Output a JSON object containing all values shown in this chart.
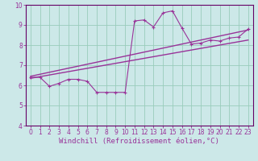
{
  "title": "",
  "xlabel": "Windchill (Refroidissement éolien,°C)",
  "bg_color": "#cce8e8",
  "grid_color": "#99ccbb",
  "line_color": "#993399",
  "spine_color": "#660066",
  "xlim": [
    -0.5,
    23.5
  ],
  "ylim": [
    4,
    10
  ],
  "xticks": [
    0,
    1,
    2,
    3,
    4,
    5,
    6,
    7,
    8,
    9,
    10,
    11,
    12,
    13,
    14,
    15,
    16,
    17,
    18,
    19,
    20,
    21,
    22,
    23
  ],
  "yticks": [
    4,
    5,
    6,
    7,
    8,
    9,
    10
  ],
  "series1_x": [
    0,
    1,
    2,
    3,
    4,
    5,
    6,
    7,
    8,
    9,
    10,
    11,
    12,
    13,
    14,
    15,
    16,
    17,
    18,
    19,
    20,
    21,
    22,
    23
  ],
  "series1_y": [
    6.4,
    6.4,
    5.95,
    6.1,
    6.3,
    6.3,
    6.2,
    5.65,
    5.65,
    5.65,
    5.65,
    9.2,
    9.25,
    8.9,
    9.6,
    9.7,
    8.85,
    8.05,
    8.1,
    8.25,
    8.2,
    8.35,
    8.4,
    8.8
  ],
  "series2_x": [
    0,
    23
  ],
  "series2_y": [
    6.35,
    8.25
  ],
  "series3_x": [
    0,
    23
  ],
  "series3_y": [
    6.45,
    8.75
  ],
  "tick_fontsize": 5.5,
  "label_fontsize": 6.5
}
